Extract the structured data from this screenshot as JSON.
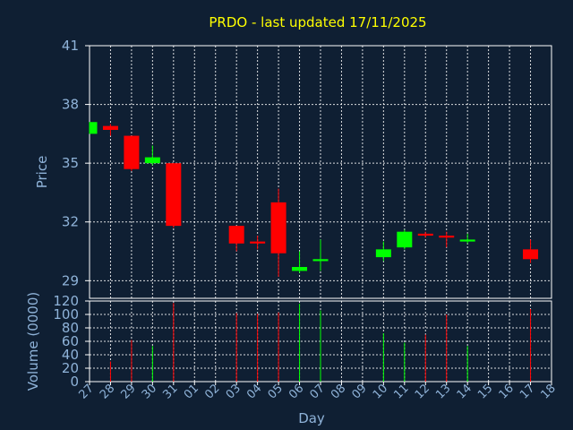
{
  "colors": {
    "up": "#00ff00",
    "down": "#ff0000",
    "background": "#0f1f33",
    "text": "#8fb3d9",
    "title": "#ffff00"
  },
  "chart_data": {
    "type": "candlestick",
    "title": "PRDO - last updated 17/11/2025",
    "xlabel": "Day",
    "ylabel": "Price",
    "volume_label": "Volume (0000)",
    "price_ylim": [
      28.1,
      41
    ],
    "price_ticks": [
      29,
      32,
      35,
      38,
      41
    ],
    "volume_ylim": [
      0,
      120
    ],
    "volume_ticks": [
      0,
      20,
      40,
      60,
      80,
      100,
      120
    ],
    "x_ticks": [
      "27",
      "28",
      "29",
      "30",
      "31",
      "01",
      "02",
      "03",
      "04",
      "05",
      "06",
      "07",
      "08",
      "09",
      "10",
      "11",
      "12",
      "13",
      "14",
      "15",
      "16",
      "17",
      "18"
    ],
    "grid": true,
    "candles": [
      {
        "day": "27",
        "open": 36.5,
        "close": 37.1,
        "high": 37.1,
        "low": 36.5,
        "volume": 0
      },
      {
        "day": "28",
        "open": 36.9,
        "close": 36.7,
        "high": 37.0,
        "low": 36.4,
        "volume": 30
      },
      {
        "day": "29",
        "open": 36.4,
        "close": 34.7,
        "high": 36.4,
        "low": 34.6,
        "volume": 62
      },
      {
        "day": "30",
        "open": 35.0,
        "close": 35.3,
        "high": 35.9,
        "low": 34.9,
        "volume": 53
      },
      {
        "day": "31",
        "open": 35.0,
        "close": 31.8,
        "high": 35.0,
        "low": 31.7,
        "volume": 117
      },
      {
        "day": "03",
        "open": 31.8,
        "close": 30.9,
        "high": 31.8,
        "low": 30.5,
        "volume": 102
      },
      {
        "day": "04",
        "open": 31.0,
        "close": 30.9,
        "high": 31.3,
        "low": 30.6,
        "volume": 101
      },
      {
        "day": "05",
        "open": 33.0,
        "close": 30.4,
        "high": 33.7,
        "low": 29.2,
        "volume": 103
      },
      {
        "day": "06",
        "open": 29.5,
        "close": 29.7,
        "high": 30.5,
        "low": 29.4,
        "volume": 116
      },
      {
        "day": "07",
        "open": 30.0,
        "close": 30.1,
        "high": 31.1,
        "low": 29.5,
        "volume": 106
      },
      {
        "day": "10",
        "open": 30.2,
        "close": 30.6,
        "high": 31.0,
        "low": 30.0,
        "volume": 72
      },
      {
        "day": "11",
        "open": 30.7,
        "close": 31.5,
        "high": 31.6,
        "low": 30.6,
        "volume": 58
      },
      {
        "day": "12",
        "open": 31.4,
        "close": 31.3,
        "high": 31.5,
        "low": 31.2,
        "volume": 70
      },
      {
        "day": "13",
        "open": 31.3,
        "close": 31.2,
        "high": 31.5,
        "low": 30.7,
        "volume": 100
      },
      {
        "day": "14",
        "open": 31.0,
        "close": 31.1,
        "high": 31.4,
        "low": 30.9,
        "volume": 53
      },
      {
        "day": "17",
        "open": 30.6,
        "close": 30.1,
        "high": 31.1,
        "low": 29.9,
        "volume": 108
      }
    ]
  }
}
